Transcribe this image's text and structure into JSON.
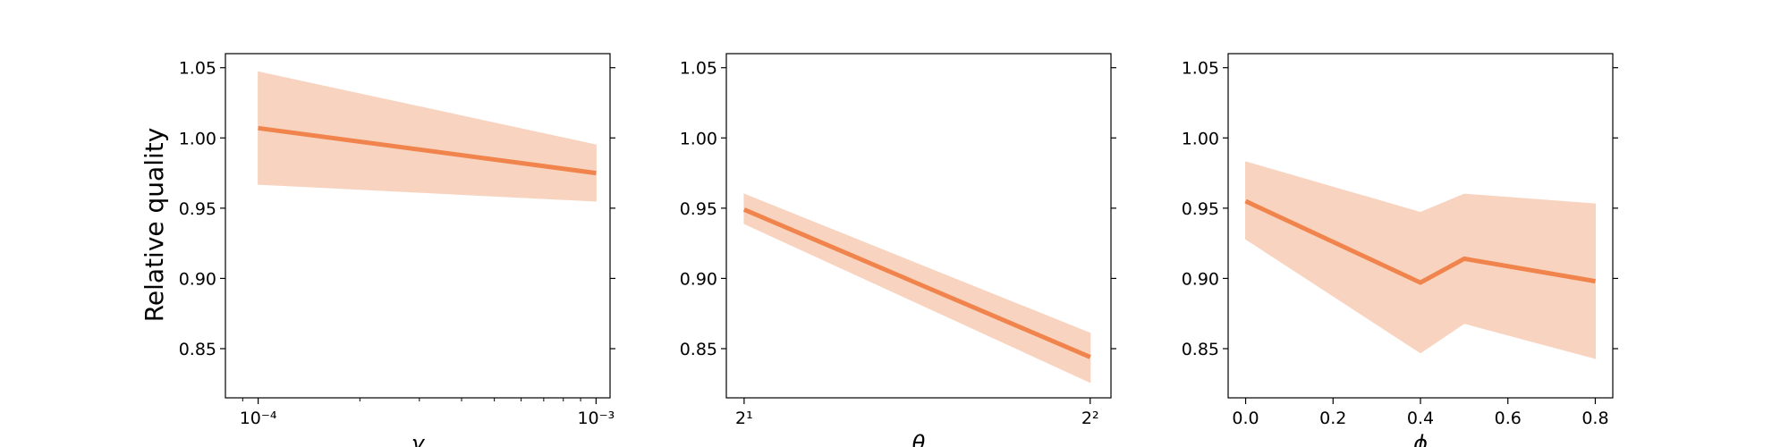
{
  "chart_data": [
    {
      "type": "line",
      "ylabel": "Relative quality",
      "xlabel": "γ",
      "x_scale": "log",
      "xticks": [
        {
          "value": 0.0001,
          "label": "10⁻⁴"
        },
        {
          "value": 0.001,
          "label": "10⁻³"
        }
      ],
      "xlim": [
        8e-05,
        0.0011
      ],
      "ylim": [
        0.815,
        1.06
      ],
      "yticks": [
        "1.05",
        "1.00",
        "0.95",
        "0.90",
        "0.85"
      ],
      "grid": false,
      "color": "#f0844c",
      "band_color": "#f8d4c0",
      "series": [
        {
          "x": [
            0.0001,
            0.001
          ],
          "y": [
            1.007,
            0.975
          ],
          "lower": [
            0.967,
            0.955
          ],
          "upper": [
            1.047,
            0.995
          ]
        }
      ]
    },
    {
      "type": "line",
      "xlabel": "θ",
      "x_scale": "log2",
      "xticks": [
        {
          "value": 2,
          "label": "2¹"
        },
        {
          "value": 4,
          "label": "2²"
        }
      ],
      "xlim": [
        1.93,
        4.17
      ],
      "ylim": [
        0.815,
        1.06
      ],
      "yticks": [
        "1.05",
        "1.00",
        "0.95",
        "0.90",
        "0.85"
      ],
      "grid": false,
      "color": "#f0844c",
      "band_color": "#f8d4c0",
      "series": [
        {
          "x": [
            2,
            4
          ],
          "y": [
            0.949,
            0.844
          ],
          "lower": [
            0.939,
            0.826
          ],
          "upper": [
            0.96,
            0.861
          ]
        }
      ]
    },
    {
      "type": "line",
      "xlabel": "ϕ",
      "x_scale": "linear",
      "xticks": [
        {
          "value": 0.0,
          "label": "0.0"
        },
        {
          "value": 0.2,
          "label": "0.2"
        },
        {
          "value": 0.4,
          "label": "0.4"
        },
        {
          "value": 0.6,
          "label": "0.6"
        },
        {
          "value": 0.8,
          "label": "0.8"
        }
      ],
      "xlim": [
        -0.04,
        0.84
      ],
      "ylim": [
        0.815,
        1.06
      ],
      "yticks": [
        "1.05",
        "1.00",
        "0.95",
        "0.90",
        "0.85"
      ],
      "grid": false,
      "color": "#f0844c",
      "band_color": "#f8d4c0",
      "series": [
        {
          "x": [
            0.0,
            0.4,
            0.5,
            0.8
          ],
          "y": [
            0.955,
            0.897,
            0.914,
            0.898
          ],
          "lower": [
            0.928,
            0.847,
            0.868,
            0.843
          ],
          "upper": [
            0.983,
            0.947,
            0.96,
            0.953
          ]
        }
      ]
    }
  ]
}
